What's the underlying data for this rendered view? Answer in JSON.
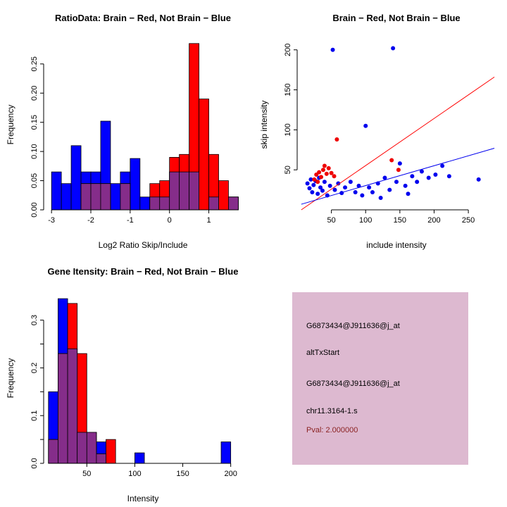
{
  "figure": {
    "background": "#FFFFFF"
  },
  "chart_data": [
    {
      "type": "bar",
      "subtype": "histogram-overlay",
      "title": "RatioData: Brain − Red, Not Brain − Blue",
      "xlabel": "Log2 Ratio Skip/Include",
      "ylabel": "Frequency",
      "xlim": [
        -3.2,
        1.85
      ],
      "ylim": [
        0,
        0.292
      ],
      "xticks": [
        -3,
        -2,
        -1,
        0,
        1
      ],
      "xtick_labels": [
        "-3",
        "-2",
        "-1",
        "0",
        "1"
      ],
      "yticks": [
        0,
        0.05,
        0.1,
        0.15,
        0.2,
        0.25
      ],
      "ytick_labels": [
        "0.00",
        "0.05",
        "0.10",
        "0.15",
        "0.20",
        "0.25"
      ],
      "bin_start": -3,
      "bin_width": 0.25,
      "baseline_span": [
        -3,
        1.75
      ],
      "grid": false,
      "series": [
        {
          "name": "Not Brain (blue)",
          "color": "#0000FF",
          "values": [
            0.065,
            0.045,
            0.11,
            0.065,
            0.065,
            0.152,
            0.045,
            0.065,
            0.088,
            0.022,
            0.022,
            0.022,
            0.065,
            0.065,
            0.065,
            0,
            0.022,
            0,
            0.022
          ]
        },
        {
          "name": "Brain (red)",
          "color": "#FF0000",
          "values": [
            0,
            0,
            0,
            0.045,
            0.045,
            0.045,
            0,
            0.045,
            0,
            0,
            0.045,
            0.05,
            0.09,
            0.095,
            0.285,
            0.19,
            0.095,
            0.05,
            0.022
          ]
        }
      ],
      "overlap_color": "#852D8A"
    },
    {
      "type": "scatter",
      "title": "Brain − Red, Not Brain − Blue",
      "xlabel": "include intensity",
      "ylabel": "skip intensity",
      "xlim": [
        0,
        290
      ],
      "ylim": [
        0,
        213
      ],
      "xticks": [
        50,
        100,
        150,
        200,
        250
      ],
      "xtick_labels": [
        "50",
        "100",
        "150",
        "200",
        "250"
      ],
      "yticks": [
        50,
        100,
        150,
        200
      ],
      "ytick_labels": [
        "50",
        "100",
        "150",
        "200"
      ],
      "grid": false,
      "series": [
        {
          "name": "Not Brain (blue)",
          "color": "#0000EE",
          "points": [
            [
              15,
              33
            ],
            [
              18,
              27
            ],
            [
              20,
              38
            ],
            [
              22,
              22
            ],
            [
              24,
              31
            ],
            [
              27,
              36
            ],
            [
              30,
              20
            ],
            [
              32,
              40
            ],
            [
              34,
              28
            ],
            [
              37,
              24
            ],
            [
              40,
              35
            ],
            [
              44,
              18
            ],
            [
              48,
              30
            ],
            [
              52,
              200
            ],
            [
              55,
              25
            ],
            [
              60,
              33
            ],
            [
              65,
              21
            ],
            [
              70,
              28
            ],
            [
              78,
              35
            ],
            [
              85,
              22
            ],
            [
              90,
              30
            ],
            [
              95,
              18
            ],
            [
              100,
              105
            ],
            [
              105,
              28
            ],
            [
              110,
              22
            ],
            [
              118,
              33
            ],
            [
              122,
              15
            ],
            [
              128,
              40
            ],
            [
              135,
              25
            ],
            [
              140,
              202
            ],
            [
              145,
              35
            ],
            [
              150,
              58
            ],
            [
              158,
              30
            ],
            [
              162,
              20
            ],
            [
              168,
              42
            ],
            [
              175,
              35
            ],
            [
              182,
              48
            ],
            [
              192,
              40
            ],
            [
              202,
              44
            ],
            [
              212,
              55
            ],
            [
              222,
              42
            ],
            [
              265,
              38
            ]
          ]
        },
        {
          "name": "Brain (red)",
          "color": "#EE0000",
          "points": [
            [
              25,
              38
            ],
            [
              28,
              44
            ],
            [
              30,
              35
            ],
            [
              32,
              47
            ],
            [
              35,
              41
            ],
            [
              38,
              50
            ],
            [
              40,
              55
            ],
            [
              43,
              45
            ],
            [
              46,
              52
            ],
            [
              50,
              46
            ],
            [
              54,
              42
            ],
            [
              58,
              88
            ],
            [
              138,
              62
            ],
            [
              148,
              50
            ]
          ]
        }
      ],
      "fit_lines": [
        {
          "name": "brain-fit-line",
          "color": "#FF0000",
          "from": [
            6,
            0
          ],
          "to": [
            288,
            166
          ]
        },
        {
          "name": "notbrain-fit-line",
          "color": "#0000EE",
          "from": [
            6,
            7
          ],
          "to": [
            288,
            77
          ]
        }
      ]
    },
    {
      "type": "bar",
      "subtype": "histogram-overlay",
      "title": "Gene Itensity: Brain − Red, Not Brain − Blue",
      "xlabel": "Intensity",
      "ylabel": "Frequency",
      "xlim": [
        5,
        212
      ],
      "ylim": [
        0,
        0.357
      ],
      "xticks": [
        50,
        100,
        150,
        200
      ],
      "xtick_labels": [
        "50",
        "100",
        "150",
        "200"
      ],
      "yticks": [
        0,
        0.05,
        0.1,
        0.15,
        0.2,
        0.25,
        0.3
      ],
      "ytick_labels": [
        "0.0",
        "",
        "0.1",
        "",
        "0.2",
        "",
        "0.3"
      ],
      "bin_start": 10,
      "bin_width": 10,
      "baseline_span": [
        10,
        200
      ],
      "grid": false,
      "series": [
        {
          "name": "Not Brain (blue)",
          "color": "#0000FF",
          "values": [
            0.15,
            0.345,
            0.24,
            0.065,
            0.065,
            0.045,
            0,
            0,
            0,
            0.022,
            0,
            0,
            0,
            0,
            0,
            0,
            0,
            0,
            0.045
          ]
        },
        {
          "name": "Brain (red)",
          "color": "#FF0000",
          "values": [
            0.05,
            0.23,
            0.335,
            0.23,
            0.065,
            0.02,
            0.05,
            0,
            0,
            0,
            0,
            0,
            0,
            0,
            0,
            0,
            0,
            0,
            0
          ]
        }
      ],
      "overlap_color": "#852D8A"
    }
  ],
  "info_panel": {
    "background": "#DDB9D0",
    "lines": [
      "G6873434@J911636@j_at",
      "altTxStart",
      "G6873434@J911636@j_at",
      "chr11.3164-1.s"
    ],
    "pval_label": "Pval: 2.000000",
    "pval_color": "#8B2222",
    "text_color": "#000000"
  }
}
